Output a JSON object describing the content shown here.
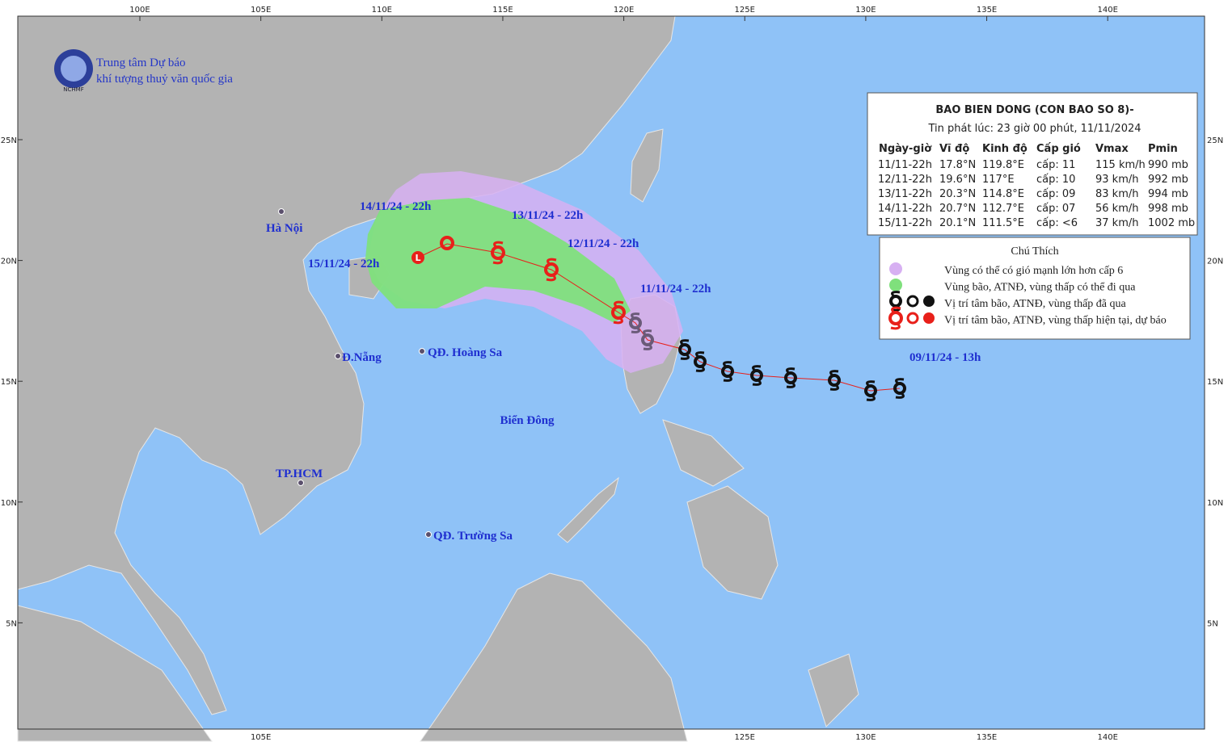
{
  "header": {
    "org_line1": "Trung tâm Dự báo",
    "org_line2": "khí tượng thuỷ văn quốc gia",
    "logo": "NCHMF"
  },
  "axes": {
    "lon": [
      "100E",
      "105E",
      "110E",
      "115E",
      "120E",
      "125E",
      "130E",
      "135E",
      "140E"
    ],
    "lat": [
      "25N",
      "20N",
      "15N",
      "10N",
      "5N"
    ]
  },
  "bulletin": {
    "title": "BAO BIEN DONG (CON BAO SO 8)-",
    "issued": "Tin phát lúc: 23 giờ 00 phút, 11/11/2024",
    "columns": [
      "Ngày-giờ",
      "Vĩ độ",
      "Kinh độ",
      "Cấp gió",
      "Vmax",
      "Pmin"
    ],
    "rows": [
      [
        "11/11-22h",
        "17.8°N",
        "119.8°E",
        "cấp: 11",
        "115 km/h",
        "990 mb"
      ],
      [
        "12/11-22h",
        "19.6°N",
        "117°E",
        "cấp: 10",
        "93 km/h",
        "992 mb"
      ],
      [
        "13/11-22h",
        "20.3°N",
        "114.8°E",
        "cấp: 09",
        "83 km/h",
        "994 mb"
      ],
      [
        "14/11-22h",
        "20.7°N",
        "112.7°E",
        "cấp: 07",
        "56 km/h",
        "998 mb"
      ],
      [
        "15/11-22h",
        "20.1°N",
        "111.5°E",
        "cấp: <6",
        "37 km/h",
        "1002 mb"
      ]
    ]
  },
  "legend": {
    "title": "Chú Thích",
    "items": [
      "Vùng có thể có gió mạnh lớn hơn cấp 6",
      "Vùng bão, ATNĐ, vùng thấp có thể đi qua",
      "Vị trí tâm bão, ATNĐ, vùng thấp đã qua",
      "Vị trí tâm bão, ATNĐ, vùng thấp hiện tại, dự báo"
    ]
  },
  "places": [
    "Hà Nội",
    "Đ.Nẵng",
    "QĐ. Hoàng Sa",
    "TP.HCM",
    "QĐ. Trường Sa"
  ],
  "sea_label": "Biển Đông",
  "track_labels": [
    "14/11/24 - 22h",
    "13/11/24 - 22h",
    "12/11/24 - 22h",
    "15/11/24 - 22h",
    "11/11/24 - 22h",
    "09/11/24 - 13h"
  ]
}
